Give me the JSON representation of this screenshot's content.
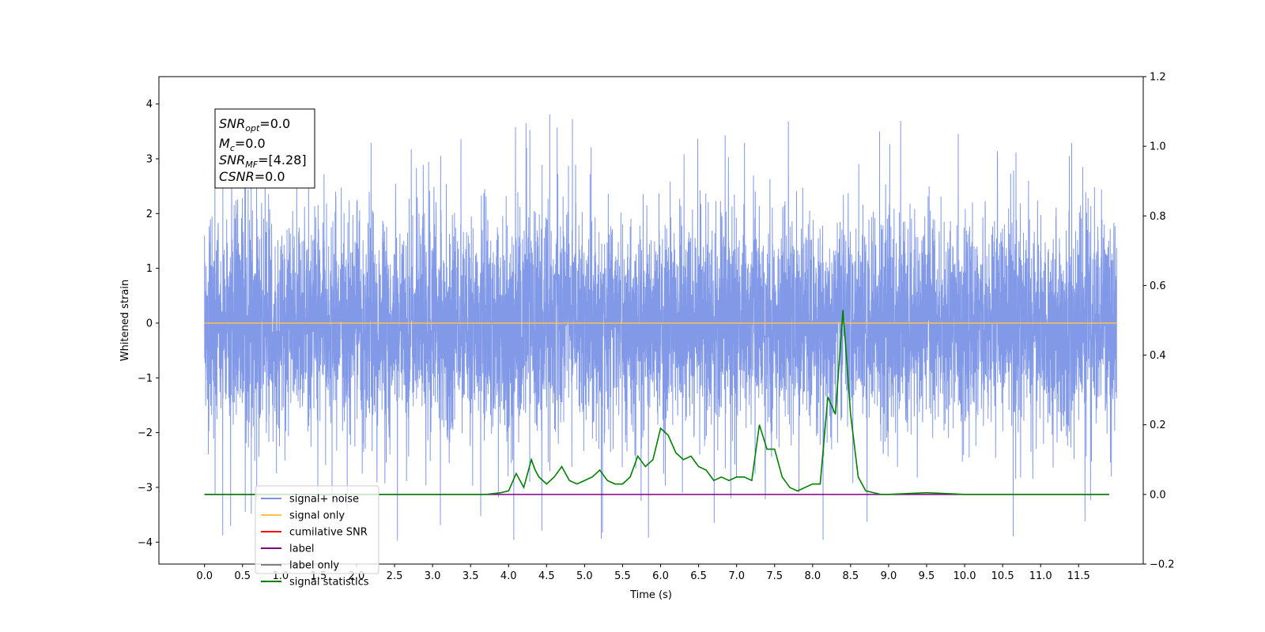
{
  "chart_data": {
    "type": "line",
    "xlabel": "Time (s)",
    "ylabel": "Whitened strain",
    "xlim": [
      -0.6,
      12.35
    ],
    "ylim": [
      -4.4,
      4.5
    ],
    "y2lim": [
      -0.2,
      1.2
    ],
    "x_ticks": [
      "0.0",
      "0.5",
      "1.0",
      "1.5",
      "2.0",
      "2.5",
      "3.0",
      "3.5",
      "4.0",
      "4.5",
      "5.0",
      "5.5",
      "6.0",
      "6.5",
      "7.0",
      "7.5",
      "8.0",
      "8.5",
      "9.0",
      "9.5",
      "10.0",
      "10.5",
      "11.0",
      "11.5"
    ],
    "y_ticks": [
      -4,
      -3,
      -2,
      -1,
      0,
      1,
      2,
      3,
      4
    ],
    "y_tick_labels": [
      "−4",
      "−3",
      "−2",
      "−1",
      "0",
      "1",
      "2",
      "3",
      "4"
    ],
    "y2_ticks": [
      "−0.2",
      "0.0",
      "0.2",
      "0.4",
      "0.6",
      "0.8",
      "1.0",
      "1.2"
    ],
    "y2_tick_values": [
      -0.2,
      0.0,
      0.2,
      0.4,
      0.6,
      0.8,
      1.0,
      1.2
    ],
    "noise": {
      "x_start": 0.0,
      "x_end": 12.0,
      "typical_range": [
        -2.5,
        2.5
      ],
      "extreme_range": [
        -4.0,
        4.1
      ]
    },
    "series": [
      {
        "name": "signal+ noise",
        "color": "#7b93e6",
        "axis": "left"
      },
      {
        "name": "signal only",
        "color": "#ffc04d",
        "axis": "left",
        "x": [
          0.0,
          12.0
        ],
        "values": [
          0.0,
          0.0
        ]
      },
      {
        "name": "cumilative SNR",
        "color": "#ff0000",
        "axis": "right"
      },
      {
        "name": "label",
        "color": "#800080",
        "axis": "right",
        "x": [
          0.0,
          11.9
        ],
        "values": [
          0.0,
          0.0
        ]
      },
      {
        "name": "label only",
        "color": "#808080",
        "axis": "right"
      },
      {
        "name": "signal statistics",
        "color": "#008000",
        "axis": "right",
        "x": [
          0.0,
          3.7,
          3.9,
          4.0,
          4.1,
          4.2,
          4.3,
          4.35,
          4.4,
          4.5,
          4.6,
          4.7,
          4.8,
          4.9,
          5.0,
          5.1,
          5.2,
          5.3,
          5.4,
          5.5,
          5.6,
          5.7,
          5.8,
          5.9,
          6.0,
          6.1,
          6.2,
          6.3,
          6.4,
          6.5,
          6.6,
          6.7,
          6.8,
          6.9,
          7.0,
          7.1,
          7.2,
          7.3,
          7.4,
          7.5,
          7.6,
          7.7,
          7.8,
          7.9,
          8.0,
          8.1,
          8.2,
          8.3,
          8.4,
          8.5,
          8.6,
          8.7,
          8.8,
          8.9,
          9.0,
          9.5,
          10.0,
          10.2,
          11.9
        ],
        "values": [
          0.0,
          0.0,
          0.005,
          0.01,
          0.06,
          0.02,
          0.1,
          0.07,
          0.05,
          0.03,
          0.05,
          0.08,
          0.04,
          0.03,
          0.04,
          0.05,
          0.07,
          0.04,
          0.03,
          0.03,
          0.05,
          0.11,
          0.08,
          0.1,
          0.19,
          0.17,
          0.12,
          0.1,
          0.11,
          0.08,
          0.07,
          0.04,
          0.05,
          0.04,
          0.05,
          0.05,
          0.04,
          0.2,
          0.13,
          0.13,
          0.05,
          0.02,
          0.01,
          0.02,
          0.03,
          0.03,
          0.28,
          0.23,
          0.53,
          0.23,
          0.05,
          0.01,
          0.005,
          0.0,
          0.0,
          0.005,
          0.0,
          0.0,
          0.0
        ]
      }
    ],
    "annotations": {
      "snr_opt": {
        "symbol": "SNR",
        "sub": "opt",
        "value": "=0.0"
      },
      "mc": {
        "symbol": "M",
        "sub": "c",
        "value": "=0.0"
      },
      "snr_mf": {
        "symbol": "SNR",
        "sub": "MF",
        "value": "=[4.28]"
      },
      "csnr": {
        "symbol": "CSNR",
        "sub": "",
        "value": "=0.0"
      }
    },
    "legend_location": "lower-left"
  }
}
